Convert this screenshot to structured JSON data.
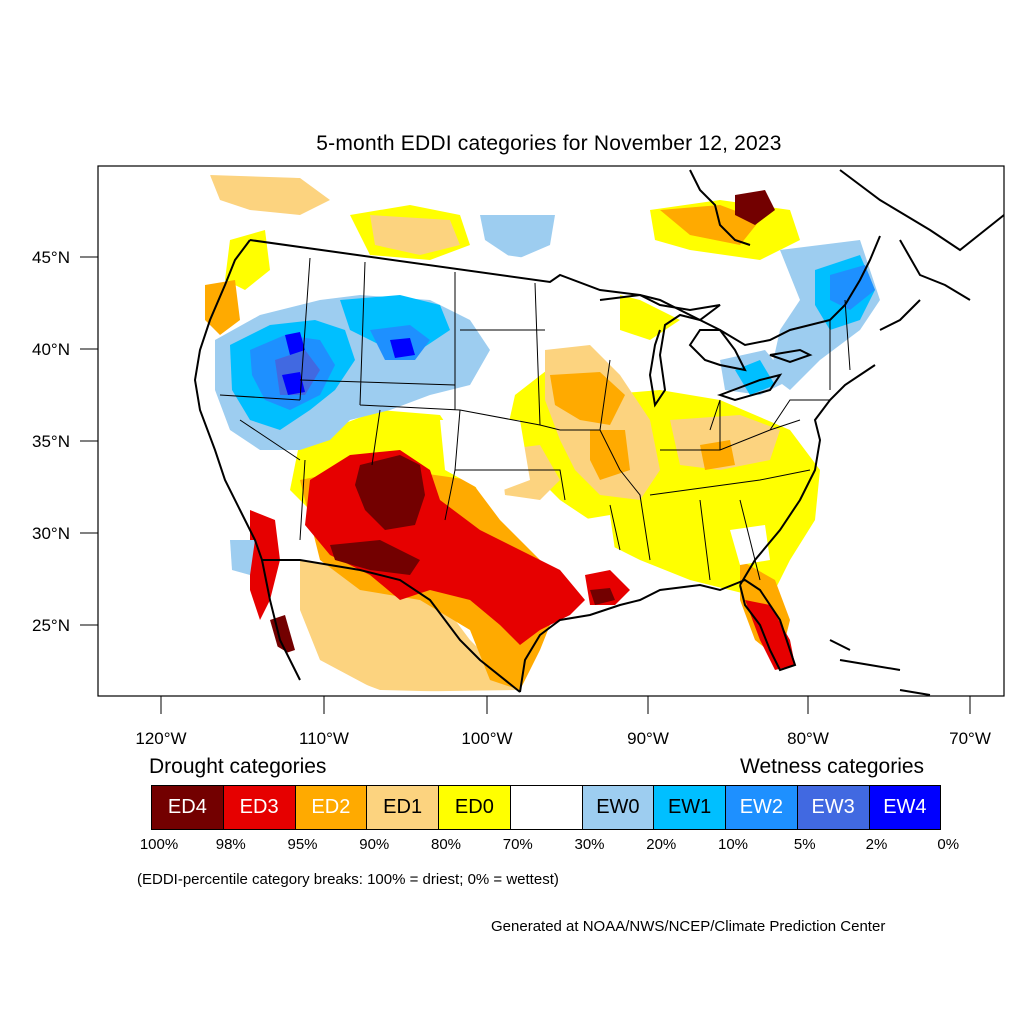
{
  "title": "5-month EDDI categories for November 12, 2023",
  "y_ticks": [
    "45°N",
    "40°N",
    "35°N",
    "30°N",
    "25°N"
  ],
  "x_ticks": [
    "120°W",
    "110°W",
    "100°W",
    "90°W",
    "80°W",
    "70°W"
  ],
  "legend": {
    "drought_heading": "Drought categories",
    "wetness_heading": "Wetness categories",
    "categories": [
      {
        "label": "ED4",
        "color": "#730000",
        "text_color": "#ffffff"
      },
      {
        "label": "ED3",
        "color": "#e60000",
        "text_color": "#ffffff"
      },
      {
        "label": "ED2",
        "color": "#ffaa00",
        "text_color": "#ffffff"
      },
      {
        "label": "ED1",
        "color": "#fcd37f",
        "text_color": "#000000"
      },
      {
        "label": "ED0",
        "color": "#ffff00",
        "text_color": "#000000"
      },
      {
        "label": "",
        "color": "#ffffff",
        "text_color": "#000000"
      },
      {
        "label": "EW0",
        "color": "#9dcdf0",
        "text_color": "#000000"
      },
      {
        "label": "EW1",
        "color": "#00bfff",
        "text_color": "#000000"
      },
      {
        "label": "EW2",
        "color": "#1e90ff",
        "text_color": "#ffffff"
      },
      {
        "label": "EW3",
        "color": "#4169e1",
        "text_color": "#ffffff"
      },
      {
        "label": "EW4",
        "color": "#0000ff",
        "text_color": "#ffffff"
      }
    ],
    "breaks": [
      "100%",
      "98%",
      "95%",
      "90%",
      "80%",
      "70%",
      "30%",
      "20%",
      "10%",
      "5%",
      "2%",
      "0%"
    ]
  },
  "note": "(EDDI-percentile category breaks: 100% = driest; 0% = wettest)",
  "credit": "Generated at NOAA/NWS/NCEP/Climate Prediction Center"
}
